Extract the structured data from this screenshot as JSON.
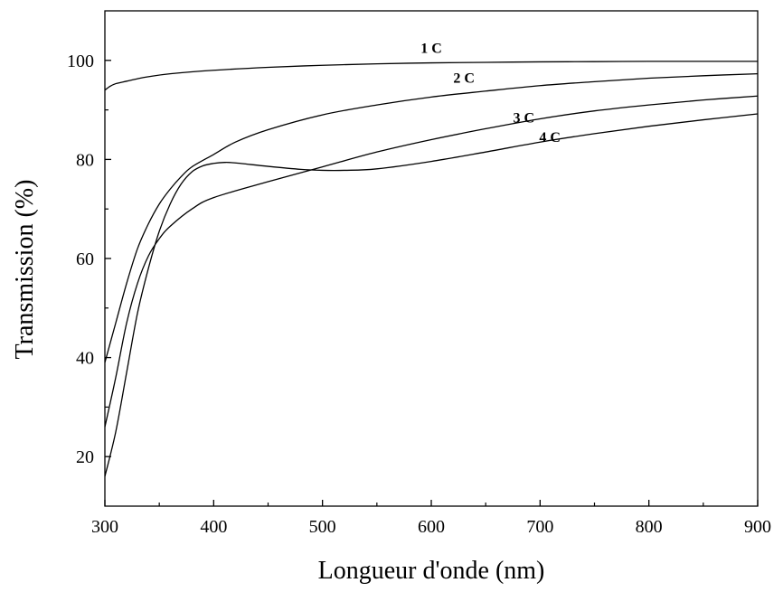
{
  "chart_data": {
    "type": "line",
    "title": "",
    "xlabel": "Longueur d'onde (nm)",
    "ylabel": "Transmission (%)",
    "xlim": [
      300,
      900
    ],
    "ylim": [
      10,
      110
    ],
    "xticks": [
      300,
      400,
      500,
      600,
      700,
      800,
      900
    ],
    "yticks": [
      20,
      40,
      60,
      80,
      100
    ],
    "xtick_labels": [
      "300",
      "400",
      "500",
      "600",
      "700",
      "800",
      "900"
    ],
    "ytick_labels": [
      "20",
      "40",
      "60",
      "80",
      "100"
    ],
    "grid": false,
    "legend": "none",
    "series": [
      {
        "name": "1 C",
        "label_at": [
          600,
          101.5
        ],
        "x": [
          300,
          305,
          310,
          320,
          330,
          340,
          360,
          400,
          450,
          500,
          550,
          600,
          650,
          700,
          750,
          800,
          850,
          900
        ],
        "y": [
          94,
          94.8,
          95.3,
          95.8,
          96.3,
          96.7,
          97.3,
          98.0,
          98.6,
          99.0,
          99.3,
          99.5,
          99.6,
          99.7,
          99.75,
          99.8,
          99.8,
          99.8
        ]
      },
      {
        "name": "2 C",
        "label_at": [
          630,
          95.5
        ],
        "x": [
          300,
          310,
          320,
          330,
          340,
          350,
          360,
          370,
          380,
          400,
          420,
          450,
          500,
          550,
          600,
          650,
          700,
          750,
          800,
          850,
          900
        ],
        "y": [
          39,
          47,
          55,
          62,
          67,
          71,
          74,
          76.5,
          78.5,
          81,
          83.5,
          86,
          89,
          91,
          92.6,
          93.8,
          94.9,
          95.7,
          96.4,
          96.9,
          97.3
        ]
      },
      {
        "name": "3 C",
        "label_at": [
          685,
          87.5
        ],
        "x": [
          300,
          310,
          320,
          330,
          340,
          350,
          360,
          380,
          400,
          450,
          500,
          550,
          600,
          650,
          700,
          750,
          800,
          850,
          900
        ],
        "y": [
          26,
          36,
          47,
          55,
          60.5,
          64,
          66.5,
          70,
          72.3,
          75.5,
          78.5,
          81.5,
          84,
          86.2,
          88.2,
          89.8,
          91,
          92,
          92.8
        ]
      },
      {
        "name": "4 C",
        "label_at": [
          709,
          83.5
        ],
        "x": [
          300,
          310,
          320,
          330,
          340,
          350,
          360,
          370,
          380,
          390,
          400,
          410,
          420,
          450,
          480,
          500,
          520,
          550,
          600,
          650,
          700,
          750,
          800,
          850,
          900
        ],
        "y": [
          16,
          25,
          37,
          49,
          58,
          65.5,
          71,
          75,
          77.5,
          78.7,
          79.2,
          79.4,
          79.3,
          78.6,
          78,
          77.8,
          77.8,
          78.1,
          79.6,
          81.5,
          83.5,
          85.2,
          86.7,
          88,
          89.2
        ]
      }
    ]
  }
}
